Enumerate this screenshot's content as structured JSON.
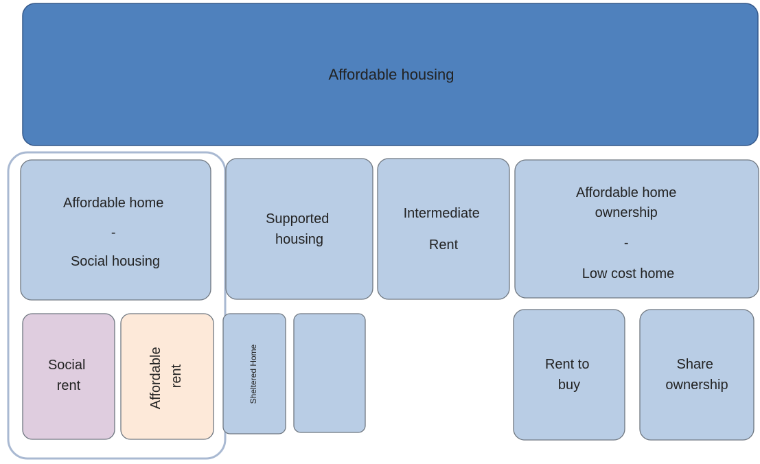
{
  "title": "Affordable housing",
  "nodes": [
    {
      "lines": [
        "Affordable home",
        "-",
        "Social housing"
      ]
    },
    {
      "lines": [
        "Supported",
        "housing"
      ]
    },
    {
      "lines": [
        "Intermediate",
        "Rent"
      ]
    },
    {
      "lines": [
        "Affordable home",
        "ownership",
        "-",
        "Low cost home"
      ]
    },
    {
      "lines": [
        "Social",
        "rent"
      ]
    },
    {
      "lines": [
        "Affordable",
        "rent"
      ]
    },
    {
      "lines": [
        "Sheltered Home"
      ]
    },
    {
      "lines": [
        "Rent to",
        "buy"
      ]
    },
    {
      "lines": [
        "Share",
        "ownership"
      ]
    }
  ]
}
